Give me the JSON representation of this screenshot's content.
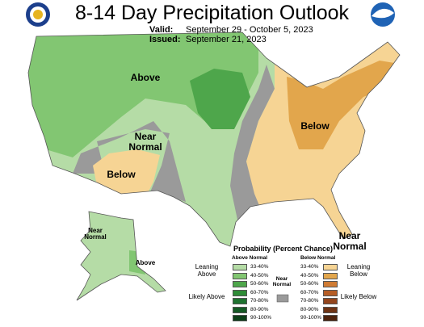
{
  "header": {
    "title": "8-14 Day Precipitation Outlook",
    "valid_label": "Valid:",
    "valid": "September 29 - October 5, 2023",
    "issued_label": "Issued:",
    "issued": "September 21, 2023"
  },
  "map_labels": [
    "Above",
    "Near Normal",
    "Below",
    "Below",
    "Near Normal",
    "Above",
    "Near Normal"
  ],
  "legend": {
    "title": "Probability (Percent Chance)",
    "above_heading": "Above Normal",
    "below_heading": "Below Normal",
    "near_heading": "Near Normal",
    "near_color": "#9a9a9a",
    "above_groups": [
      "Leaning Above",
      "Likely Above"
    ],
    "below_groups": [
      "Leaning Below",
      "Likely Below"
    ],
    "above": [
      {
        "label": "33-40%",
        "color": "#b5dca6"
      },
      {
        "label": "40-50%",
        "color": "#82c672"
      },
      {
        "label": "50-60%",
        "color": "#4ea64b"
      },
      {
        "label": "60-70%",
        "color": "#2f8c37"
      },
      {
        "label": "70-80%",
        "color": "#1f7330"
      },
      {
        "label": "80-90%",
        "color": "#155a25"
      },
      {
        "label": "90-100%",
        "color": "#0c3f18"
      }
    ],
    "below": [
      {
        "label": "33-40%",
        "color": "#f6d494"
      },
      {
        "label": "40-50%",
        "color": "#e2a64c"
      },
      {
        "label": "50-60%",
        "color": "#cf7b33"
      },
      {
        "label": "60-70%",
        "color": "#b55d26"
      },
      {
        "label": "70-80%",
        "color": "#93451d"
      },
      {
        "label": "80-90%",
        "color": "#6e3314"
      },
      {
        "label": "90-100%",
        "color": "#4c220c"
      }
    ]
  }
}
